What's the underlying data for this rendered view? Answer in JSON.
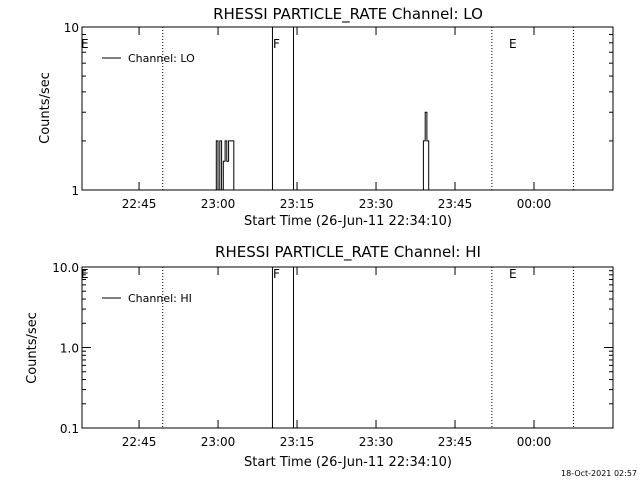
{
  "chart_data": [
    {
      "type": "line",
      "title": "RHESSI PARTICLE_RATE Channel: LO",
      "xlabel": "Start Time (26-Jun-11 22:34:10)",
      "ylabel": "Counts/sec",
      "yscale": "log",
      "ylim": [
        1,
        10
      ],
      "xlim": [
        "22:34:10",
        "00:15:00"
      ],
      "x_ticks": [
        "22:45",
        "23:00",
        "23:15",
        "23:30",
        "23:45",
        "00:00"
      ],
      "y_ticks": [
        "1",
        "10"
      ],
      "grid": false,
      "legend_position": "top-left",
      "series": [
        {
          "name": "Channel: LO",
          "x": [
            "22:34:10",
            "22:42:00",
            "22:59:20",
            "22:59:40",
            "23:00:00",
            "23:00:20",
            "23:00:40",
            "23:01:00",
            "23:01:20",
            "23:01:40",
            "23:02:00",
            "23:02:40",
            "23:03:00",
            "23:10:00",
            "23:38:40",
            "23:39:00",
            "23:39:20",
            "23:39:40",
            "23:40:00",
            "23:40:20",
            "23:41:00",
            "23:55:00"
          ],
          "y": [
            1,
            1,
            1,
            2,
            1,
            2,
            1,
            1.5,
            2,
            1.5,
            2,
            2,
            1,
            1,
            1,
            2,
            3,
            2,
            1,
            1,
            1,
            1
          ]
        }
      ],
      "flags": [
        {
          "label": "E",
          "time": "22:34:10",
          "style": "none"
        },
        {
          "label": "",
          "time": "22:49:30",
          "style": "dotted"
        },
        {
          "label": "F",
          "time": "23:10:20",
          "style": "solid"
        },
        {
          "label": "",
          "time": "23:14:20",
          "style": "solid"
        },
        {
          "label": "E",
          "time": "23:52:00",
          "style": "dotted"
        },
        {
          "label": "",
          "time": "00:07:30",
          "style": "dotted"
        }
      ]
    },
    {
      "type": "line",
      "title": "RHESSI PARTICLE_RATE Channel: HI",
      "xlabel": "Start Time (26-Jun-11 22:34:10)",
      "ylabel": "Counts/sec",
      "yscale": "log",
      "ylim": [
        0.1,
        10
      ],
      "xlim": [
        "22:34:10",
        "00:15:00"
      ],
      "x_ticks": [
        "22:45",
        "23:00",
        "23:15",
        "23:30",
        "23:45",
        "00:00"
      ],
      "y_ticks": [
        "0.1",
        "1.0",
        "10.0"
      ],
      "grid": false,
      "legend_position": "top-left",
      "series": [
        {
          "name": "Channel: HI",
          "x": [],
          "y": []
        }
      ],
      "flags": [
        {
          "label": "E",
          "time": "22:34:10",
          "style": "none"
        },
        {
          "label": "",
          "time": "22:49:30",
          "style": "dotted"
        },
        {
          "label": "F",
          "time": "23:10:20",
          "style": "solid"
        },
        {
          "label": "",
          "time": "23:14:20",
          "style": "solid"
        },
        {
          "label": "E",
          "time": "23:52:00",
          "style": "dotted"
        },
        {
          "label": "",
          "time": "00:07:30",
          "style": "dotted"
        }
      ]
    }
  ],
  "footer": {
    "timestamp": "18-Oct-2021 02:57"
  }
}
